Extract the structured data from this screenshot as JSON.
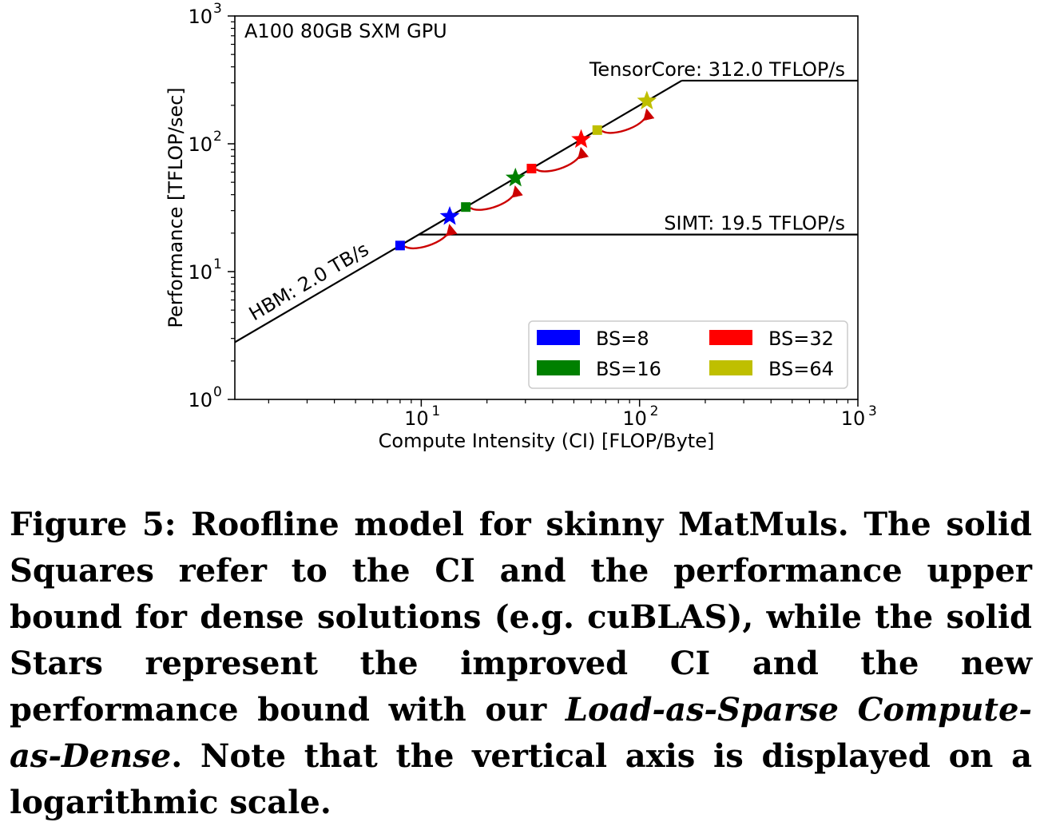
{
  "chart_data": {
    "type": "scatter",
    "title": "A100 80GB SXM GPU",
    "xlabel": "Compute Intensity (CI) [FLOP/Byte]",
    "ylabel": "Performance [TFLOP/sec]",
    "xscale": "log",
    "yscale": "log",
    "xlim": [
      1.4,
      1000
    ],
    "ylim": [
      1,
      1000
    ],
    "x_ticks": [
      {
        "base": "10",
        "exp": "1",
        "value": 10
      },
      {
        "base": "10",
        "exp": "2",
        "value": 100
      },
      {
        "base": "10",
        "exp": "3",
        "value": 1000
      }
    ],
    "y_ticks": [
      {
        "base": "10",
        "exp": "0",
        "value": 1
      },
      {
        "base": "10",
        "exp": "1",
        "value": 10
      },
      {
        "base": "10",
        "exp": "2",
        "value": 100
      },
      {
        "base": "10",
        "exp": "3",
        "value": 1000
      }
    ],
    "grid": false,
    "legend_position": "lower-right",
    "bandwidth_TBps": 2.0,
    "roofs": [
      {
        "name": "TensorCore",
        "peak": 312.0,
        "label": "TensorCore: 312.0 TFLOP/s"
      },
      {
        "name": "SIMT",
        "peak": 19.5,
        "label": "SIMT: 19.5 TFLOP/s"
      }
    ],
    "bandwidth_label": "HBM: 2.0 TB/s",
    "series": [
      {
        "name": "BS=8",
        "color": "#0000ff",
        "dense": {
          "x": 8,
          "y": 16
        },
        "sparse": {
          "x": 13.5,
          "y": 27
        }
      },
      {
        "name": "BS=16",
        "color": "#008000",
        "dense": {
          "x": 16,
          "y": 32
        },
        "sparse": {
          "x": 27,
          "y": 54
        }
      },
      {
        "name": "BS=32",
        "color": "#ff0000",
        "dense": {
          "x": 32,
          "y": 64
        },
        "sparse": {
          "x": 54,
          "y": 108
        }
      },
      {
        "name": "BS=64",
        "color": "#bfbf00",
        "dense": {
          "x": 64,
          "y": 128
        },
        "sparse": {
          "x": 108,
          "y": 216
        }
      }
    ],
    "arrow_color": "#cc0000"
  },
  "caption": {
    "lead": "Figure 5: Roofline model for skinny MatMuls. The solid Squares refer to the CI and the performance upper bound for dense solutions (e.g. cuBLAS), while the solid Stars represent the improved CI and the new performance bound with our ",
    "italic": "Load-as-Sparse Compute-as-Dense",
    "tail": ". Note that the vertical axis is displayed on a logarithmic scale."
  }
}
